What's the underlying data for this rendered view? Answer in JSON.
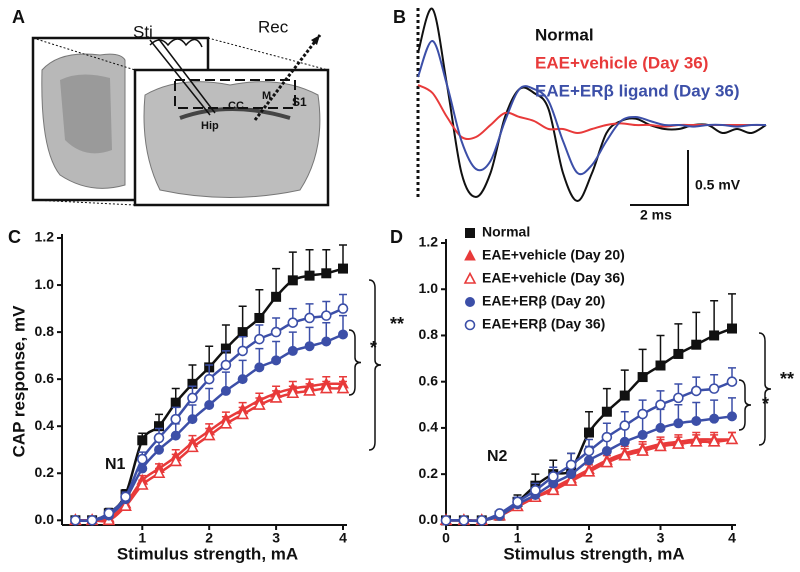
{
  "image_panel": {
    "panel_label": "A",
    "labels": [
      "Sti",
      "Rec",
      "CC",
      "M",
      "S1",
      "Hip"
    ]
  },
  "chart_data": [
    {
      "type": "line",
      "panel_label": "B",
      "scale_bar": {
        "y_label": "0.5 mV",
        "x_label": "2 ms"
      },
      "x": [
        0,
        0.5,
        1,
        1.5,
        2,
        2.5,
        3,
        3.5,
        4,
        4.5,
        5,
        5.5,
        6,
        6.5,
        7,
        7.5,
        8,
        8.5,
        9,
        9.5,
        10,
        10.5,
        11,
        11.5,
        12
      ],
      "xlim": [
        0,
        12
      ],
      "ylim": [
        -1.2,
        1.5
      ],
      "series": [
        {
          "name": "Normal",
          "color": "#111111",
          "values": [
            0.9,
            1.45,
            0.5,
            -0.6,
            -0.9,
            -0.6,
            0.1,
            0.45,
            0.4,
            0.2,
            -0.6,
            -0.95,
            -0.6,
            -0.1,
            0.05,
            0.08,
            0,
            -0.05,
            -0.05,
            0,
            0,
            -0.1,
            -0.05,
            -0.1,
            0
          ]
        },
        {
          "name": "EAE+vehicle (Day 36)",
          "color": "#e83a3a",
          "values": [
            0.5,
            0.4,
            0.1,
            -0.15,
            -0.15,
            0,
            0.15,
            0.1,
            0.05,
            -0.05,
            -0.05,
            -0.1,
            -0.05,
            0,
            0.02,
            0,
            0,
            -0.02,
            0,
            0,
            0,
            0,
            0,
            0,
            0
          ]
        },
        {
          "name": "EAE+ERβ ligand (Day 36)",
          "color": "#3c4fa8",
          "values": [
            0.6,
            1.05,
            0.5,
            -0.2,
            -0.55,
            -0.45,
            0.05,
            0.45,
            0.45,
            0.3,
            -0.2,
            -0.6,
            -0.5,
            -0.2,
            0.05,
            0.1,
            0.05,
            0,
            0,
            -0.02,
            0,
            0,
            -0.02,
            0,
            0
          ]
        }
      ]
    },
    {
      "type": "scatter",
      "panel_label": "C",
      "y_label": "CAP response, mV",
      "x_label": "Stimulus strength, mA",
      "annotations": [
        "N1",
        "**",
        "*"
      ],
      "x": [
        0,
        0.25,
        0.5,
        0.75,
        1,
        1.25,
        1.5,
        1.75,
        2,
        2.25,
        2.5,
        2.75,
        3,
        3.25,
        3.5,
        3.75,
        4
      ],
      "xlim": [
        -0.2,
        4
      ],
      "ylim": [
        -0.02,
        1.2
      ],
      "xticks": [
        1,
        2,
        3,
        4
      ],
      "yticks": [
        {
          "value": 0,
          "label": "0.0"
        },
        0.2,
        0.4,
        0.6,
        0.8,
        {
          "value": 1,
          "label": "1.0"
        },
        1.2
      ],
      "series": [
        {
          "color": "#111111",
          "marker": "square",
          "values": [
            0,
            0,
            0.03,
            0.11,
            0.34,
            0.4,
            0.5,
            0.58,
            0.65,
            0.73,
            0.8,
            0.86,
            0.95,
            1.02,
            1.04,
            1.05,
            1.07
          ],
          "errors": [
            0,
            0,
            0.02,
            0.02,
            0.03,
            0.05,
            0.06,
            0.08,
            0.09,
            0.1,
            0.11,
            0.12,
            0.12,
            0.12,
            0.11,
            0.1,
            0.1
          ]
        },
        {
          "color": "#e83a3a",
          "marker": "triangle",
          "values": [
            0,
            0,
            0.01,
            0.07,
            0.17,
            0.22,
            0.27,
            0.33,
            0.38,
            0.43,
            0.47,
            0.51,
            0.54,
            0.56,
            0.57,
            0.58,
            0.58
          ],
          "errors": [
            0,
            0,
            0.01,
            0.02,
            0.02,
            0.02,
            0.03,
            0.03,
            0.03,
            0.03,
            0.03,
            0.03,
            0.03,
            0.03,
            0.03,
            0.03,
            0.03
          ]
        },
        {
          "color": "#e83a3a",
          "marker": "triangle-open",
          "values": [
            0,
            0,
            0,
            0.06,
            0.15,
            0.2,
            0.25,
            0.31,
            0.36,
            0.41,
            0.45,
            0.49,
            0.52,
            0.54,
            0.55,
            0.56,
            0.56
          ],
          "errors": [
            0,
            0,
            0.01,
            0.02,
            0.02,
            0.02,
            0.03,
            0.03,
            0.03,
            0.03,
            0.03,
            0.03,
            0.03,
            0.03,
            0.03,
            0.03,
            0.03
          ]
        },
        {
          "color": "#3c4fa8",
          "marker": "circle",
          "values": [
            0,
            0,
            0.02,
            0.09,
            0.22,
            0.3,
            0.36,
            0.43,
            0.49,
            0.55,
            0.6,
            0.65,
            0.68,
            0.72,
            0.74,
            0.76,
            0.79
          ],
          "errors": [
            0,
            0,
            0.01,
            0.02,
            0.03,
            0.04,
            0.05,
            0.06,
            0.07,
            0.08,
            0.08,
            0.08,
            0.08,
            0.08,
            0.08,
            0.08,
            0.08
          ]
        },
        {
          "color": "#3c4fa8",
          "marker": "circle-open",
          "values": [
            0,
            0,
            0.03,
            0.1,
            0.26,
            0.35,
            0.43,
            0.52,
            0.6,
            0.66,
            0.72,
            0.77,
            0.8,
            0.84,
            0.86,
            0.87,
            0.9
          ],
          "errors": [
            0,
            0,
            0.01,
            0.02,
            0.03,
            0.04,
            0.05,
            0.05,
            0.06,
            0.06,
            0.06,
            0.06,
            0.06,
            0.06,
            0.06,
            0.06,
            0.06
          ]
        }
      ]
    },
    {
      "type": "scatter",
      "panel_label": "D",
      "x_label": "Stimulus strength, mA",
      "annotations": [
        "N2",
        "**",
        "*"
      ],
      "x": [
        0,
        0.25,
        0.5,
        0.75,
        1,
        1.25,
        1.5,
        1.75,
        2,
        2.25,
        2.5,
        2.75,
        3,
        3.25,
        3.5,
        3.75,
        4
      ],
      "xlim": [
        0,
        4
      ],
      "ylim": [
        -0.02,
        1.2
      ],
      "xticks": [
        0,
        1,
        2,
        3,
        4
      ],
      "yticks": [
        {
          "value": 0,
          "label": "0.0"
        },
        0.2,
        0.4,
        0.6,
        0.8,
        {
          "value": 1,
          "label": "1.0"
        },
        1.2
      ],
      "series": [
        {
          "name": "Normal",
          "color": "#111111",
          "marker": "square",
          "values": [
            0,
            0,
            0,
            0.02,
            0.08,
            0.15,
            0.2,
            0.22,
            0.38,
            0.47,
            0.54,
            0.62,
            0.67,
            0.72,
            0.76,
            0.8,
            0.83
          ],
          "errors": [
            0,
            0,
            0,
            0.01,
            0.03,
            0.05,
            0.06,
            0.07,
            0.09,
            0.1,
            0.11,
            0.12,
            0.13,
            0.13,
            0.14,
            0.15,
            0.15
          ]
        },
        {
          "name": "EAE+vehicle (Day 20)",
          "color": "#e83a3a",
          "marker": "triangle",
          "values": [
            0,
            0,
            0,
            0.02,
            0.06,
            0.1,
            0.14,
            0.18,
            0.22,
            0.26,
            0.29,
            0.31,
            0.33,
            0.34,
            0.35,
            0.35,
            0.35
          ],
          "errors": [
            0,
            0,
            0,
            0.01,
            0.01,
            0.02,
            0.02,
            0.03,
            0.03,
            0.03,
            0.03,
            0.03,
            0.03,
            0.03,
            0.03,
            0.03,
            0.03
          ]
        },
        {
          "name": "EAE+vehicle (Day 36)",
          "color": "#e83a3a",
          "marker": "triangle-open",
          "values": [
            0,
            0,
            0,
            0.02,
            0.06,
            0.1,
            0.13,
            0.17,
            0.21,
            0.25,
            0.28,
            0.3,
            0.32,
            0.33,
            0.34,
            0.34,
            0.35
          ],
          "errors": [
            0,
            0,
            0,
            0.01,
            0.01,
            0.02,
            0.02,
            0.03,
            0.03,
            0.03,
            0.03,
            0.03,
            0.03,
            0.03,
            0.03,
            0.03,
            0.03
          ]
        },
        {
          "name": "EAE+ERβ (Day 20)",
          "color": "#3c4fa8",
          "marker": "circle",
          "values": [
            0,
            0,
            0,
            0.02,
            0.07,
            0.11,
            0.16,
            0.2,
            0.26,
            0.3,
            0.34,
            0.37,
            0.4,
            0.42,
            0.43,
            0.44,
            0.45
          ],
          "errors": [
            0,
            0,
            0,
            0.01,
            0.02,
            0.03,
            0.04,
            0.05,
            0.06,
            0.07,
            0.08,
            0.08,
            0.08,
            0.08,
            0.08,
            0.08,
            0.08
          ]
        },
        {
          "name": "EAE+ERβ (Day 36)",
          "color": "#3c4fa8",
          "marker": "circle-open",
          "values": [
            0,
            0,
            0,
            0.03,
            0.08,
            0.13,
            0.19,
            0.24,
            0.3,
            0.36,
            0.41,
            0.46,
            0.5,
            0.53,
            0.56,
            0.57,
            0.6
          ],
          "errors": [
            0,
            0,
            0,
            0.01,
            0.02,
            0.03,
            0.04,
            0.05,
            0.05,
            0.06,
            0.06,
            0.06,
            0.06,
            0.06,
            0.06,
            0.06,
            0.06
          ]
        }
      ]
    }
  ]
}
